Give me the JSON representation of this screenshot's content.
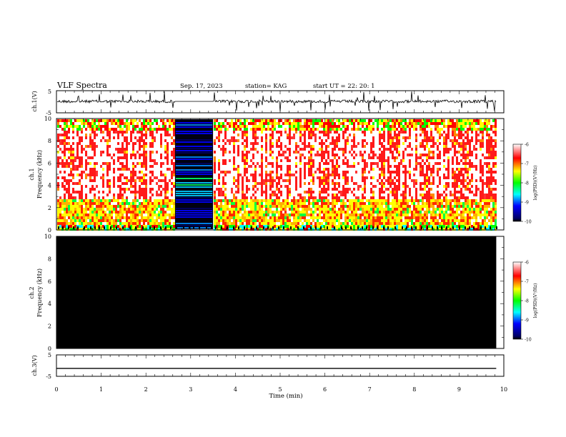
{
  "header": {
    "title": "VLF Spectra",
    "date": "Sep. 17, 2023",
    "station": "station= KAG",
    "start_ut": "start  UT =   22: 20: 1"
  },
  "chart_data": [
    {
      "type": "line",
      "panel": "ch1-waveform",
      "ylabel": "ch.1(V)",
      "ylim": [
        -5,
        5
      ],
      "y_ticks": [
        "5",
        "-5"
      ],
      "gap_minutes": [
        2.65,
        3.5
      ]
    },
    {
      "type": "heatmap",
      "panel": "ch1-spectrogram",
      "ylabel": "ch.1\nFrequency (kHz)",
      "ylim": [
        0,
        10
      ],
      "y_ticks": [
        "0",
        "2",
        "4",
        "6",
        "8",
        "10"
      ],
      "xlim": [
        0,
        10
      ],
      "data_end_minutes": 9.83,
      "calibration_block_minutes": [
        2.65,
        3.5
      ],
      "colorbar": {
        "label": "log(PSD)(V²/Hz)",
        "range": [
          -10,
          -6
        ],
        "ticks": [
          "-6",
          "-7",
          "-8",
          "-9",
          "-10"
        ],
        "colors": [
          "#000000",
          "#0000ff",
          "#00ffff",
          "#00ff00",
          "#ffff00",
          "#ff0000",
          "#ffffff"
        ]
      }
    },
    {
      "type": "heatmap",
      "panel": "ch2-spectrogram",
      "ylabel": "ch.2\nFrequency (kHz)",
      "ylim": [
        0,
        10
      ],
      "y_ticks": [
        "0",
        "2",
        "4",
        "6",
        "8",
        "10"
      ],
      "xlim": [
        0,
        10
      ],
      "data_end_minutes": 9.83,
      "fill": "#000000",
      "colorbar": {
        "label": "log(PSD)(V²/Hz)",
        "range": [
          -10,
          -6
        ],
        "ticks": [
          "-6",
          "-7",
          "-8",
          "-9",
          "-10"
        ]
      }
    },
    {
      "type": "line",
      "panel": "ch3-waveform",
      "ylabel": "ch.3(V)",
      "ylim": [
        -5,
        5
      ],
      "y_ticks": [
        "5",
        "-5"
      ],
      "x": [
        0,
        9.83
      ],
      "y": [
        -1.3,
        -1.3
      ]
    }
  ],
  "x_axis": {
    "label": "Time  (min)",
    "ticks": [
      "0",
      "1",
      "2",
      "3",
      "4",
      "5",
      "6",
      "7",
      "8",
      "9",
      "10"
    ]
  }
}
